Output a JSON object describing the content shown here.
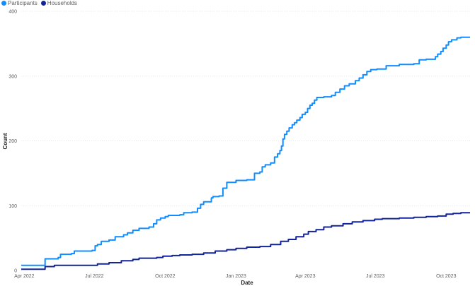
{
  "chart_data": {
    "type": "line",
    "xlabel": "Date",
    "ylabel": "Count",
    "xlim": [
      "2022-03-28",
      "2023-11-01"
    ],
    "ylim": [
      0,
      400
    ],
    "y_ticks": [
      0,
      100,
      200,
      300,
      400
    ],
    "x_ticks": [
      {
        "date": "2022-04-01",
        "label": "Apr 2022"
      },
      {
        "date": "2022-07-01",
        "label": "Jul 2022"
      },
      {
        "date": "2022-10-01",
        "label": "Oct 2022"
      },
      {
        "date": "2023-01-01",
        "label": "Jan 2023"
      },
      {
        "date": "2023-04-01",
        "label": "Apr 2023"
      },
      {
        "date": "2023-07-01",
        "label": "Jul 2023"
      },
      {
        "date": "2023-10-01",
        "label": "Oct 2023"
      }
    ],
    "grid": true,
    "legend_position": "top-left",
    "series": [
      {
        "name": "Participants",
        "color": "#118DFF",
        "points": [
          [
            "2022-03-28",
            8
          ],
          [
            "2022-04-25",
            8
          ],
          [
            "2022-04-28",
            18
          ],
          [
            "2022-05-15",
            20
          ],
          [
            "2022-05-18",
            25
          ],
          [
            "2022-06-01",
            26
          ],
          [
            "2022-06-05",
            30
          ],
          [
            "2022-06-28",
            31
          ],
          [
            "2022-07-02",
            38
          ],
          [
            "2022-07-05",
            40
          ],
          [
            "2022-07-10",
            45
          ],
          [
            "2022-07-20",
            47
          ],
          [
            "2022-07-28",
            52
          ],
          [
            "2022-08-08",
            55
          ],
          [
            "2022-08-13",
            58
          ],
          [
            "2022-08-20",
            62
          ],
          [
            "2022-08-28",
            65
          ],
          [
            "2022-09-10",
            67
          ],
          [
            "2022-09-16",
            72
          ],
          [
            "2022-09-20",
            78
          ],
          [
            "2022-09-25",
            81
          ],
          [
            "2022-10-01",
            83
          ],
          [
            "2022-10-05",
            85
          ],
          [
            "2022-10-20",
            86
          ],
          [
            "2022-10-25",
            89
          ],
          [
            "2022-11-05",
            90
          ],
          [
            "2022-11-12",
            96
          ],
          [
            "2022-11-16",
            102
          ],
          [
            "2022-11-20",
            106
          ],
          [
            "2022-11-30",
            112
          ],
          [
            "2022-12-02",
            114
          ],
          [
            "2022-12-10",
            115
          ],
          [
            "2022-12-15",
            127
          ],
          [
            "2022-12-20",
            136
          ],
          [
            "2023-01-01",
            139
          ],
          [
            "2023-01-15",
            140
          ],
          [
            "2023-01-25",
            150
          ],
          [
            "2023-02-01",
            152
          ],
          [
            "2023-02-04",
            160
          ],
          [
            "2023-02-08",
            163
          ],
          [
            "2023-02-15",
            166
          ],
          [
            "2023-02-20",
            175
          ],
          [
            "2023-02-24",
            180
          ],
          [
            "2023-02-27",
            185
          ],
          [
            "2023-03-01",
            192
          ],
          [
            "2023-03-03",
            203
          ],
          [
            "2023-03-05",
            210
          ],
          [
            "2023-03-08",
            215
          ],
          [
            "2023-03-11",
            220
          ],
          [
            "2023-03-15",
            225
          ],
          [
            "2023-03-18",
            228
          ],
          [
            "2023-03-21",
            232
          ],
          [
            "2023-03-25",
            236
          ],
          [
            "2023-03-28",
            241
          ],
          [
            "2023-04-01",
            244
          ],
          [
            "2023-04-04",
            250
          ],
          [
            "2023-04-07",
            255
          ],
          [
            "2023-04-10",
            258
          ],
          [
            "2023-04-13",
            263
          ],
          [
            "2023-04-16",
            267
          ],
          [
            "2023-04-25",
            268
          ],
          [
            "2023-05-05",
            270
          ],
          [
            "2023-05-10",
            275
          ],
          [
            "2023-05-16",
            280
          ],
          [
            "2023-05-22",
            285
          ],
          [
            "2023-05-28",
            288
          ],
          [
            "2023-06-05",
            293
          ],
          [
            "2023-06-10",
            297
          ],
          [
            "2023-06-15",
            302
          ],
          [
            "2023-06-20",
            307
          ],
          [
            "2023-06-25",
            310
          ],
          [
            "2023-07-03",
            311
          ],
          [
            "2023-07-15",
            316
          ],
          [
            "2023-08-01",
            318
          ],
          [
            "2023-08-20",
            319
          ],
          [
            "2023-08-27",
            325
          ],
          [
            "2023-09-05",
            326
          ],
          [
            "2023-09-17",
            330
          ],
          [
            "2023-09-20",
            334
          ],
          [
            "2023-09-24",
            338
          ],
          [
            "2023-09-27",
            343
          ],
          [
            "2023-10-01",
            348
          ],
          [
            "2023-10-04",
            353
          ],
          [
            "2023-10-08",
            356
          ],
          [
            "2023-10-15",
            359
          ],
          [
            "2023-10-20",
            360
          ],
          [
            "2023-11-01",
            360
          ]
        ]
      },
      {
        "name": "Households",
        "color": "#12239E",
        "points": [
          [
            "2022-03-28",
            2
          ],
          [
            "2022-04-25",
            2
          ],
          [
            "2022-04-28",
            6
          ],
          [
            "2022-05-10",
            8
          ],
          [
            "2022-06-30",
            8
          ],
          [
            "2022-07-05",
            10
          ],
          [
            "2022-07-20",
            12
          ],
          [
            "2022-08-05",
            15
          ],
          [
            "2022-08-20",
            17
          ],
          [
            "2022-08-28",
            19
          ],
          [
            "2022-09-20",
            20
          ],
          [
            "2022-09-28",
            22
          ],
          [
            "2022-10-10",
            23
          ],
          [
            "2022-10-20",
            24
          ],
          [
            "2022-11-05",
            25
          ],
          [
            "2022-11-20",
            27
          ],
          [
            "2022-12-05",
            30
          ],
          [
            "2022-12-20",
            32
          ],
          [
            "2023-01-01",
            34
          ],
          [
            "2023-01-15",
            36
          ],
          [
            "2023-02-01",
            37
          ],
          [
            "2023-02-15",
            40
          ],
          [
            "2023-02-28",
            45
          ],
          [
            "2023-03-10",
            48
          ],
          [
            "2023-03-20",
            52
          ],
          [
            "2023-03-30",
            56
          ],
          [
            "2023-04-05",
            60
          ],
          [
            "2023-04-15",
            63
          ],
          [
            "2023-04-25",
            67
          ],
          [
            "2023-05-05",
            69
          ],
          [
            "2023-05-20",
            72
          ],
          [
            "2023-06-01",
            75
          ],
          [
            "2023-06-15",
            77
          ],
          [
            "2023-06-30",
            79
          ],
          [
            "2023-07-10",
            80
          ],
          [
            "2023-08-01",
            81
          ],
          [
            "2023-08-20",
            82
          ],
          [
            "2023-09-05",
            83
          ],
          [
            "2023-09-20",
            84
          ],
          [
            "2023-10-01",
            87
          ],
          [
            "2023-10-10",
            88
          ],
          [
            "2023-10-20",
            89
          ],
          [
            "2023-11-01",
            89
          ]
        ]
      }
    ]
  }
}
